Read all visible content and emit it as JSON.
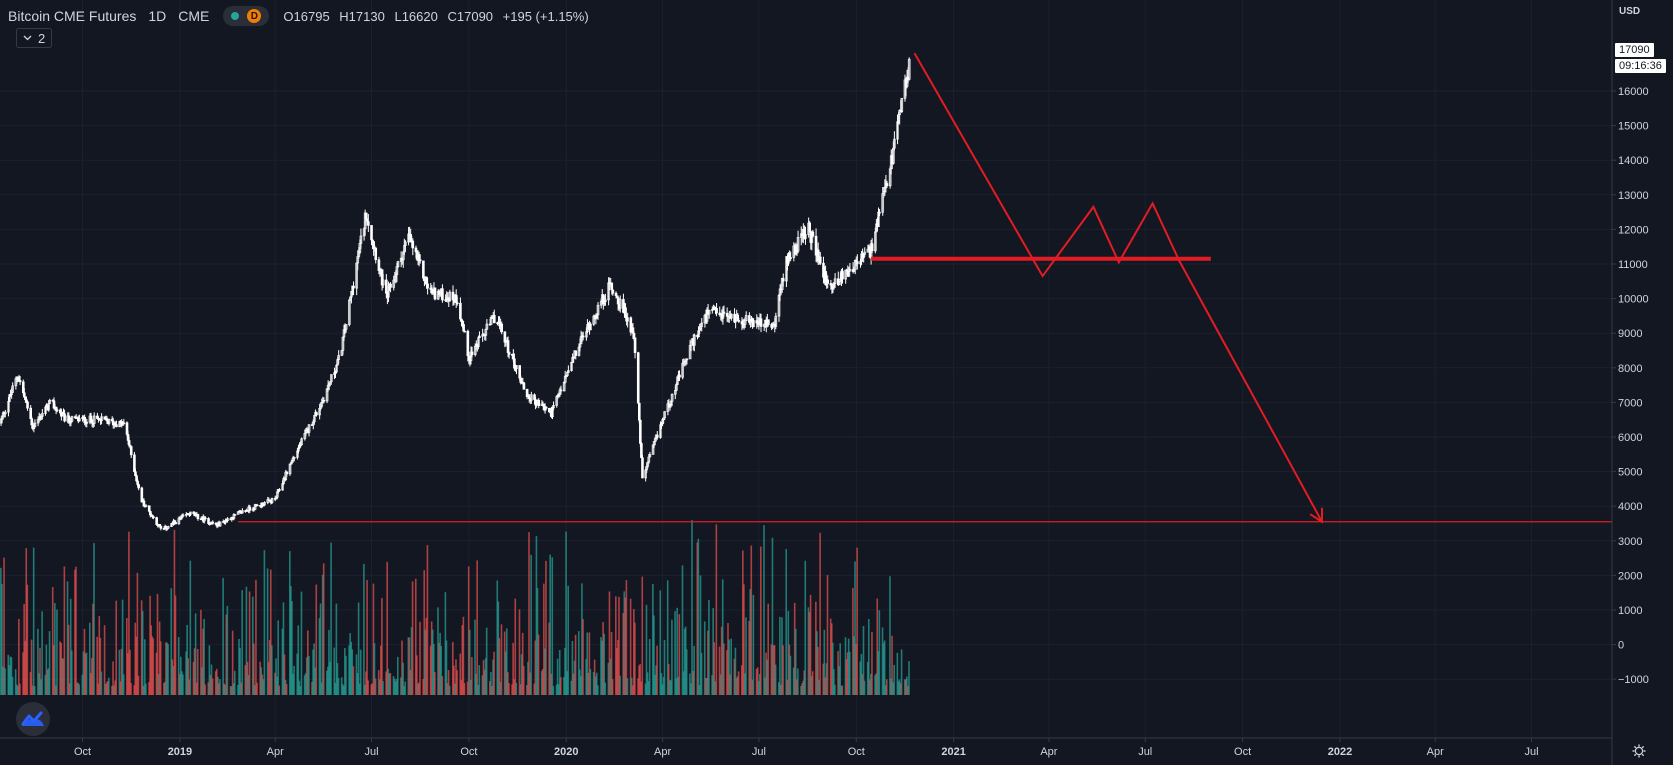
{
  "header": {
    "symbol": "Bitcoin CME Futures",
    "timeframe": "1D",
    "exchange": "CME",
    "badge": "D",
    "open": "O16795",
    "high": "H17130",
    "low": "L16620",
    "close": "C17090",
    "change": "+195 (+1.15%)",
    "collapse_label": "2"
  },
  "price_axis": {
    "currency": "USD",
    "last_price": "17090",
    "countdown": "09:16:36"
  },
  "colors": {
    "background": "#131722",
    "candle": "#ffffff",
    "drawing": "#e31c24",
    "volume_up": "#26a69a",
    "volume_down": "#ef5350",
    "axis_text": "#d1d4dc"
  },
  "icons": [
    "chevron-down-icon",
    "settings-gear-icon",
    "tradingview-logo-icon"
  ],
  "chart_data": {
    "type": "candlestick",
    "title": "Bitcoin CME Futures",
    "y_ticks": [
      -1000,
      0,
      1000,
      2000,
      3000,
      4000,
      5000,
      6000,
      7000,
      8000,
      9000,
      10000,
      11000,
      12000,
      13000,
      14000,
      15000,
      16000
    ],
    "x_tick_labels": [
      "Oct",
      "2019",
      "Apr",
      "Jul",
      "Oct",
      "2020",
      "Apr",
      "Jul",
      "Oct",
      "2021",
      "Apr",
      "Jul",
      "Oct",
      "2022",
      "Apr",
      "Jul"
    ],
    "x_tick_dates": [
      "2018-10-01",
      "2019-01-01",
      "2019-04-01",
      "2019-07-01",
      "2019-10-01",
      "2020-01-01",
      "2020-04-01",
      "2020-07-01",
      "2020-10-01",
      "2021-01-01",
      "2021-04-01",
      "2021-07-01",
      "2021-10-01",
      "2022-01-01",
      "2022-04-01",
      "2022-07-01"
    ],
    "x_range": [
      "2018-07-15",
      "2022-09-15"
    ],
    "ylim": [
      -1000,
      16500
    ],
    "price_path": [
      {
        "date": "2018-07-15",
        "value": 6400
      },
      {
        "date": "2018-08-01",
        "value": 7800
      },
      {
        "date": "2018-08-15",
        "value": 6300
      },
      {
        "date": "2018-09-01",
        "value": 7000
      },
      {
        "date": "2018-09-15",
        "value": 6500
      },
      {
        "date": "2018-10-15",
        "value": 6500
      },
      {
        "date": "2018-11-10",
        "value": 6350
      },
      {
        "date": "2018-11-25",
        "value": 4200
      },
      {
        "date": "2018-12-15",
        "value": 3300
      },
      {
        "date": "2019-01-10",
        "value": 3800
      },
      {
        "date": "2019-02-05",
        "value": 3450
      },
      {
        "date": "2019-03-01",
        "value": 3850
      },
      {
        "date": "2019-04-01",
        "value": 4200
      },
      {
        "date": "2019-04-15",
        "value": 5200
      },
      {
        "date": "2019-05-15",
        "value": 7000
      },
      {
        "date": "2019-06-01",
        "value": 8300
      },
      {
        "date": "2019-06-26",
        "value": 12500
      },
      {
        "date": "2019-07-15",
        "value": 10000
      },
      {
        "date": "2019-08-05",
        "value": 11800
      },
      {
        "date": "2019-08-25",
        "value": 10200
      },
      {
        "date": "2019-09-20",
        "value": 10000
      },
      {
        "date": "2019-10-01",
        "value": 8300
      },
      {
        "date": "2019-10-26",
        "value": 9500
      },
      {
        "date": "2019-11-25",
        "value": 7200
      },
      {
        "date": "2019-12-18",
        "value": 6700
      },
      {
        "date": "2020-01-15",
        "value": 8800
      },
      {
        "date": "2020-02-12",
        "value": 10400
      },
      {
        "date": "2020-03-05",
        "value": 9000
      },
      {
        "date": "2020-03-13",
        "value": 4800
      },
      {
        "date": "2020-04-01",
        "value": 6500
      },
      {
        "date": "2020-04-30",
        "value": 8800
      },
      {
        "date": "2020-05-15",
        "value": 9600
      },
      {
        "date": "2020-06-15",
        "value": 9400
      },
      {
        "date": "2020-07-15",
        "value": 9200
      },
      {
        "date": "2020-07-28",
        "value": 11200
      },
      {
        "date": "2020-08-17",
        "value": 12000
      },
      {
        "date": "2020-09-05",
        "value": 10300
      },
      {
        "date": "2020-10-15",
        "value": 11400
      },
      {
        "date": "2020-11-01",
        "value": 13600
      },
      {
        "date": "2020-11-22",
        "value": 17090
      }
    ],
    "volume_range": [
      0,
      3200
    ],
    "volume_baseline": -2000,
    "annotations": {
      "zigzag": [
        {
          "date": "2020-11-25",
          "value": 17090
        },
        {
          "date": "2021-03-26",
          "value": 10650
        },
        {
          "date": "2021-05-13",
          "value": 12650
        },
        {
          "date": "2021-06-06",
          "value": 11050
        },
        {
          "date": "2021-07-08",
          "value": 12750
        },
        {
          "date": "2021-08-02",
          "value": 11100
        },
        {
          "date": "2021-12-15",
          "value": 3550
        }
      ],
      "resistance": {
        "start": "2020-10-15",
        "end": "2021-09-01",
        "value": 11150
      },
      "support": {
        "start": "2019-02-25",
        "end": "2022-09-15",
        "value": 3550
      }
    }
  }
}
